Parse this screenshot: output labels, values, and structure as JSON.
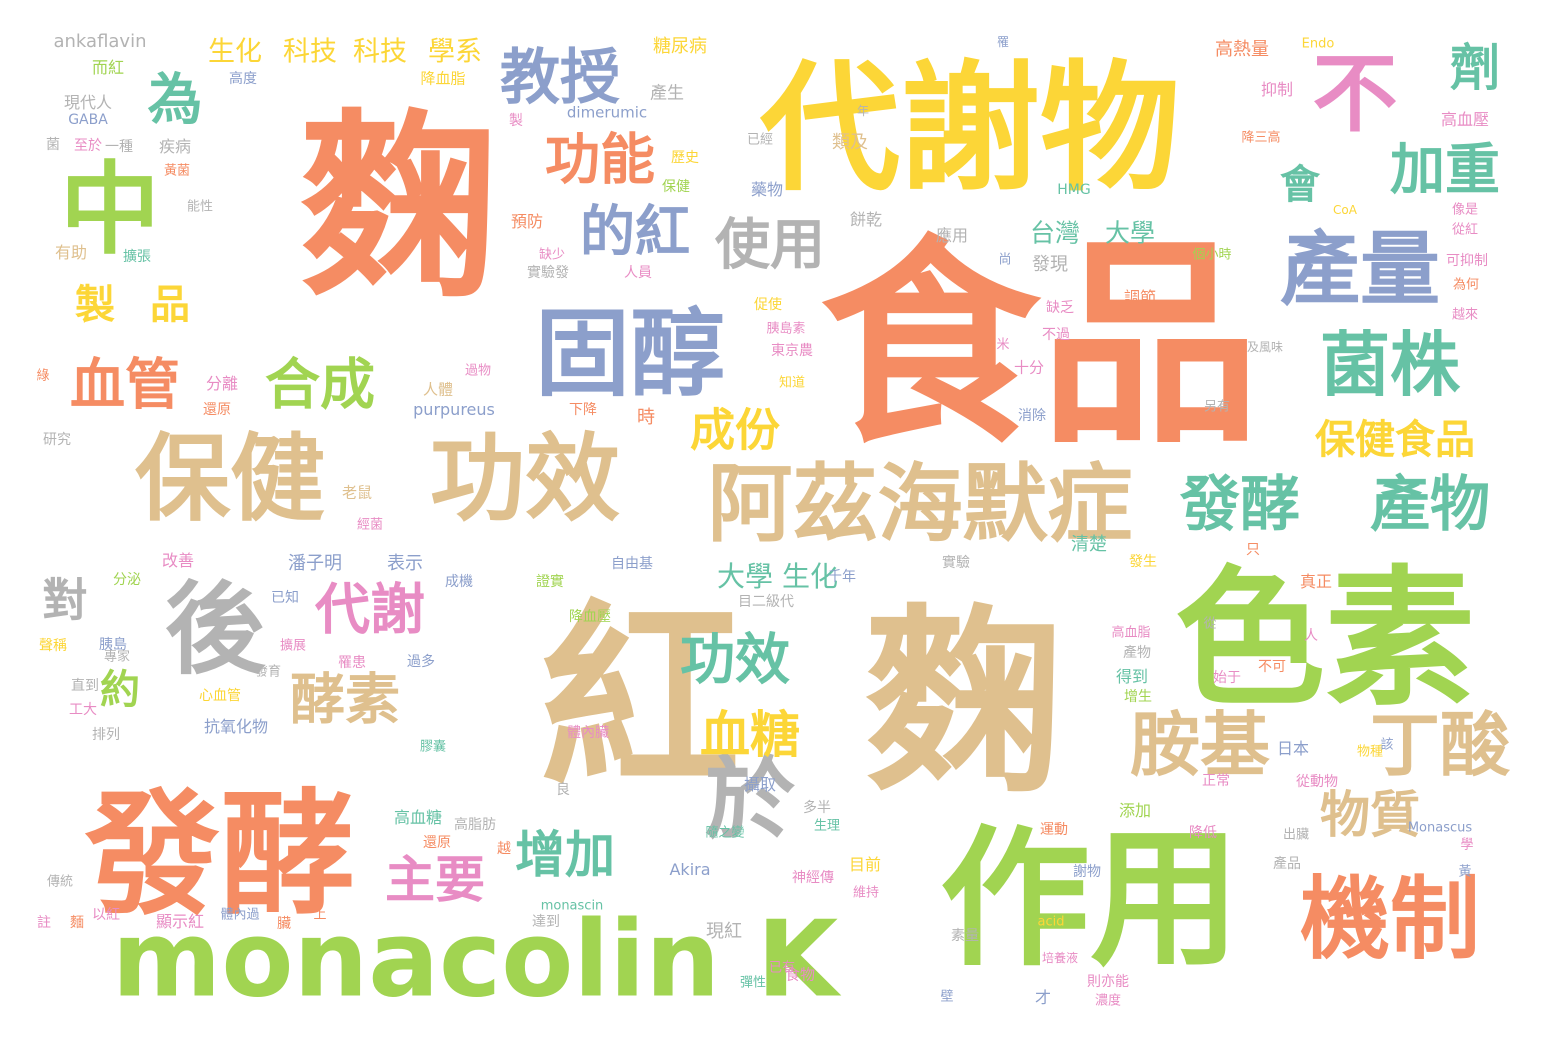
{
  "palette": {
    "orange": "#f58c63",
    "tan": "#dfc08e",
    "green": "#a1d451",
    "yellow": "#fcd637",
    "blue": "#8c9fcb",
    "gray": "#b3b3b3",
    "teal": "#66c2a5",
    "pink": "#e88cc4"
  },
  "words": [
    {
      "text": "麴",
      "color": "orange",
      "vertical": false
    },
    {
      "text": "食品",
      "color": "orange",
      "vertical": false
    },
    {
      "text": "紅",
      "color": "tan",
      "vertical": false
    },
    {
      "text": "麴",
      "color": "tan",
      "vertical": false
    },
    {
      "text": "代謝物",
      "color": "yellow",
      "vertical": false
    },
    {
      "text": "色素",
      "color": "green",
      "vertical": false
    },
    {
      "text": "作用",
      "color": "green",
      "vertical": false
    },
    {
      "text": "發酵",
      "color": "orange",
      "vertical": false
    },
    {
      "text": "monacolin K",
      "color": "green",
      "vertical": false
    },
    {
      "text": "固醇",
      "color": "blue",
      "vertical": false
    },
    {
      "text": "保健",
      "color": "tan",
      "vertical": false
    },
    {
      "text": "功效",
      "color": "tan",
      "vertical": false
    },
    {
      "text": "阿茲海默症",
      "color": "tan",
      "vertical": false
    },
    {
      "text": "中",
      "color": "green",
      "vertical": false
    },
    {
      "text": "後",
      "color": "gray",
      "vertical": false
    },
    {
      "text": "不",
      "color": "pink",
      "vertical": false
    },
    {
      "text": "產量",
      "color": "blue",
      "vertical": false
    },
    {
      "text": "菌株",
      "color": "teal",
      "vertical": false
    },
    {
      "text": "機制",
      "color": "orange",
      "vertical": false
    },
    {
      "text": "胺基",
      "color": "tan",
      "vertical": false
    },
    {
      "text": "丁酸",
      "color": "tan",
      "vertical": false
    },
    {
      "text": "於",
      "color": "gray",
      "vertical": false
    },
    {
      "text": "發酵",
      "color": "teal",
      "vertical": false
    },
    {
      "text": "產物",
      "color": "teal",
      "vertical": false
    },
    {
      "text": "教授",
      "color": "blue",
      "vertical": false
    },
    {
      "text": "功能",
      "color": "orange",
      "vertical": false
    },
    {
      "text": "的紅",
      "color": "blue",
      "vertical": false
    },
    {
      "text": "使用",
      "color": "gray",
      "vertical": false
    },
    {
      "text": "合成",
      "color": "green",
      "vertical": false
    },
    {
      "text": "血管",
      "color": "orange",
      "vertical": false
    },
    {
      "text": "為",
      "color": "teal",
      "vertical": false
    },
    {
      "text": "製",
      "color": "yellow",
      "vertical": false
    },
    {
      "text": "品",
      "color": "yellow",
      "vertical": false
    },
    {
      "text": "加重",
      "color": "teal",
      "vertical": false
    },
    {
      "text": "劑",
      "color": "teal",
      "vertical": false
    },
    {
      "text": "會",
      "color": "teal",
      "vertical": false
    },
    {
      "text": "代謝",
      "color": "pink",
      "vertical": false
    },
    {
      "text": "酵素",
      "color": "tan",
      "vertical": false
    },
    {
      "text": "對",
      "color": "gray",
      "vertical": false
    },
    {
      "text": "約",
      "color": "green",
      "vertical": false
    },
    {
      "text": "功效",
      "color": "teal",
      "vertical": false
    },
    {
      "text": "血糖",
      "color": "yellow",
      "vertical": false
    },
    {
      "text": "增加",
      "color": "teal",
      "vertical": false
    },
    {
      "text": "主要",
      "color": "pink",
      "vertical": false
    },
    {
      "text": "物質",
      "color": "tan",
      "vertical": false
    },
    {
      "text": "成份",
      "color": "yellow",
      "vertical": false
    },
    {
      "text": "保健食品",
      "color": "yellow",
      "vertical": false
    },
    {
      "text": "台灣",
      "color": "teal",
      "vertical": false
    },
    {
      "text": "大學",
      "color": "teal",
      "vertical": false
    },
    {
      "text": "大學",
      "color": "teal",
      "vertical": false
    },
    {
      "text": "生化",
      "color": "teal",
      "vertical": false
    },
    {
      "text": "生化",
      "color": "yellow",
      "vertical": false
    },
    {
      "text": "科技",
      "color": "yellow",
      "vertical": false
    },
    {
      "text": "科技",
      "color": "yellow",
      "vertical": false
    },
    {
      "text": "學系",
      "color": "yellow",
      "vertical": false
    },
    {
      "text": "ankaflavin",
      "color": "gray",
      "vertical": false
    },
    {
      "text": "糖尿病",
      "color": "yellow",
      "vertical": false
    },
    {
      "text": "Endo",
      "color": "yellow",
      "vertical": false
    },
    {
      "text": "高熱量",
      "color": "orange",
      "vertical": false
    },
    {
      "text": "抑制",
      "color": "pink",
      "vertical": false
    },
    {
      "text": "高血壓",
      "color": "pink",
      "vertical": false
    },
    {
      "text": "而紅",
      "color": "green",
      "vertical": false
    },
    {
      "text": "高度",
      "color": "blue",
      "vertical": false
    },
    {
      "text": "降血脂",
      "color": "yellow",
      "vertical": false
    },
    {
      "text": "產生",
      "color": "gray",
      "vertical": false
    },
    {
      "text": "現代人",
      "color": "gray",
      "vertical": false
    },
    {
      "text": "GABA",
      "color": "blue",
      "vertical": false
    },
    {
      "text": "dimerumic",
      "color": "blue",
      "vertical": false
    },
    {
      "text": "疾病",
      "color": "gray",
      "vertical": false
    },
    {
      "text": "一種",
      "color": "gray",
      "vertical": false
    },
    {
      "text": "類及",
      "color": "tan",
      "vertical": false
    },
    {
      "text": "歷史",
      "color": "yellow",
      "vertical": false
    },
    {
      "text": "保健",
      "color": "green",
      "vertical": false
    },
    {
      "text": "預防",
      "color": "orange",
      "vertical": false
    },
    {
      "text": "藥物",
      "color": "blue",
      "vertical": false
    },
    {
      "text": "餅乾",
      "color": "gray",
      "vertical": false
    },
    {
      "text": "應用",
      "color": "gray",
      "vertical": false
    },
    {
      "text": "HMG",
      "color": "teal",
      "vertical": false
    },
    {
      "text": "CoA",
      "color": "yellow",
      "vertical": false
    },
    {
      "text": "發現",
      "color": "gray",
      "vertical": false
    },
    {
      "text": "調節",
      "color": "orange",
      "vertical": false
    },
    {
      "text": "有助",
      "color": "tan",
      "vertical": false
    },
    {
      "text": "擴張",
      "color": "teal",
      "vertical": false
    },
    {
      "text": "實驗發",
      "color": "gray",
      "vertical": false
    },
    {
      "text": "人員",
      "color": "pink",
      "vertical": false
    },
    {
      "text": "促使",
      "color": "yellow",
      "vertical": false
    },
    {
      "text": "胰島素",
      "color": "pink",
      "vertical": false
    },
    {
      "text": "東京農",
      "color": "pink",
      "vertical": false
    },
    {
      "text": "知道",
      "color": "yellow",
      "vertical": false
    },
    {
      "text": "缺乏",
      "color": "pink",
      "vertical": false
    },
    {
      "text": "不過",
      "color": "pink",
      "vertical": false
    },
    {
      "text": "十分",
      "color": "pink",
      "vertical": false
    },
    {
      "text": "分離",
      "color": "pink",
      "vertical": false
    },
    {
      "text": "還原",
      "color": "orange",
      "vertical": false
    },
    {
      "text": "人體",
      "color": "tan",
      "vertical": false
    },
    {
      "text": "purpureus",
      "color": "blue",
      "vertical": false
    },
    {
      "text": "下降",
      "color": "orange",
      "vertical": false
    },
    {
      "text": "時",
      "color": "orange",
      "vertical": false
    },
    {
      "text": "消除",
      "color": "blue",
      "vertical": false
    },
    {
      "text": "另有",
      "color": "gray",
      "vertical": false
    },
    {
      "text": "研究",
      "color": "gray",
      "vertical": false
    },
    {
      "text": "老鼠",
      "color": "tan",
      "vertical": false
    },
    {
      "text": "改善",
      "color": "pink",
      "vertical": false
    },
    {
      "text": "潘子明",
      "color": "blue",
      "vertical": false
    },
    {
      "text": "表示",
      "color": "blue",
      "vertical": false
    },
    {
      "text": "成機",
      "color": "blue",
      "vertical": false
    },
    {
      "text": "證實",
      "color": "green",
      "vertical": false
    },
    {
      "text": "自由基",
      "color": "blue",
      "vertical": false
    },
    {
      "text": "千年",
      "color": "blue",
      "vertical": false
    },
    {
      "text": "實驗",
      "color": "gray",
      "vertical": false
    },
    {
      "text": "發生",
      "color": "yellow",
      "vertical": false
    },
    {
      "text": "清楚",
      "color": "teal",
      "vertical": false
    },
    {
      "text": "真正",
      "color": "orange",
      "vertical": false
    },
    {
      "text": "分泌",
      "color": "green",
      "vertical": false
    },
    {
      "text": "已知",
      "color": "blue",
      "vertical": false
    },
    {
      "text": "目二級代",
      "color": "gray",
      "vertical": false
    },
    {
      "text": "降血壓",
      "color": "green",
      "vertical": false
    },
    {
      "text": "高血脂",
      "color": "pink",
      "vertical": false
    },
    {
      "text": "產物",
      "color": "gray",
      "vertical": false
    },
    {
      "text": "得到",
      "color": "teal",
      "vertical": false
    },
    {
      "text": "增生",
      "color": "green",
      "vertical": false
    },
    {
      "text": "始于",
      "color": "pink",
      "vertical": false
    },
    {
      "text": "不可",
      "color": "orange",
      "vertical": false
    },
    {
      "text": "聲稱",
      "color": "yellow",
      "vertical": false
    },
    {
      "text": "胰島",
      "color": "blue",
      "vertical": false
    },
    {
      "text": "擴展",
      "color": "pink",
      "vertical": false
    },
    {
      "text": "罹患",
      "color": "pink",
      "vertical": false
    },
    {
      "text": "過多",
      "color": "blue",
      "vertical": false
    },
    {
      "text": "直到",
      "color": "gray",
      "vertical": false
    },
    {
      "text": "工大",
      "color": "pink",
      "vertical": false
    },
    {
      "text": "心血管",
      "color": "yellow",
      "vertical": false
    },
    {
      "text": "抗氧化物",
      "color": "blue",
      "vertical": false
    },
    {
      "text": "排列",
      "color": "gray",
      "vertical": false
    },
    {
      "text": "體內臟",
      "color": "pink",
      "vertical": false
    },
    {
      "text": "膠囊",
      "color": "teal",
      "vertical": false
    },
    {
      "text": "日本",
      "color": "blue",
      "vertical": false
    },
    {
      "text": "從動物",
      "color": "pink",
      "vertical": false
    },
    {
      "text": "正常",
      "color": "pink",
      "vertical": false
    },
    {
      "text": "物種",
      "color": "yellow",
      "vertical": false
    },
    {
      "text": "攝取",
      "color": "blue",
      "vertical": false
    },
    {
      "text": "多半",
      "color": "gray",
      "vertical": false
    },
    {
      "text": "生理",
      "color": "teal",
      "vertical": false
    },
    {
      "text": "添加",
      "color": "green",
      "vertical": false
    },
    {
      "text": "高血糖",
      "color": "teal",
      "vertical": false
    },
    {
      "text": "高脂肪",
      "color": "gray",
      "vertical": false
    },
    {
      "text": "運動",
      "color": "orange",
      "vertical": false
    },
    {
      "text": "出臟",
      "color": "gray",
      "vertical": false
    },
    {
      "text": "Monascus",
      "color": "blue",
      "vertical": false
    },
    {
      "text": "還原",
      "color": "orange",
      "vertical": false
    },
    {
      "text": "隨之變",
      "color": "teal",
      "vertical": false
    },
    {
      "text": "降低",
      "color": "pink",
      "vertical": false
    },
    {
      "text": "目前",
      "color": "yellow",
      "vertical": false
    },
    {
      "text": "產品",
      "color": "gray",
      "vertical": false
    },
    {
      "text": "Akira",
      "color": "blue",
      "vertical": false
    },
    {
      "text": "神經傳",
      "color": "pink",
      "vertical": false
    },
    {
      "text": "維持",
      "color": "pink",
      "vertical": false
    },
    {
      "text": "謝物",
      "color": "blue",
      "vertical": false
    },
    {
      "text": "傳統",
      "color": "gray",
      "vertical": false
    },
    {
      "text": "以紅",
      "color": "pink",
      "vertical": false
    },
    {
      "text": "顯示紅",
      "color": "pink",
      "vertical": false
    },
    {
      "text": "體內過",
      "color": "blue",
      "vertical": false
    },
    {
      "text": "上",
      "color": "orange",
      "vertical": false
    },
    {
      "text": "達到",
      "color": "gray",
      "vertical": false
    },
    {
      "text": "monascin",
      "color": "teal",
      "vertical": false
    },
    {
      "text": "現紅",
      "color": "gray",
      "vertical": false
    },
    {
      "text": "素量",
      "color": "gray",
      "vertical": false
    },
    {
      "text": "acid",
      "color": "yellow",
      "vertical": false
    },
    {
      "text": "培養液",
      "color": "pink",
      "vertical": false
    },
    {
      "text": "食物",
      "color": "pink",
      "vertical": false
    },
    {
      "text": "已有",
      "color": "pink",
      "vertical": false
    },
    {
      "text": "彈性",
      "color": "teal",
      "vertical": false
    },
    {
      "text": "則亦能",
      "color": "pink",
      "vertical": false
    },
    {
      "text": "濃度",
      "color": "pink",
      "vertical": false
    },
    {
      "text": "才",
      "color": "blue",
      "vertical": false
    },
    {
      "text": "壁",
      "color": "blue",
      "vertical": false
    },
    {
      "text": "註",
      "color": "pink",
      "vertical": false
    },
    {
      "text": "麵",
      "color": "orange",
      "vertical": false
    },
    {
      "text": "臟",
      "color": "orange",
      "vertical": false
    },
    {
      "text": "罹",
      "color": "blue",
      "vertical": false
    },
    {
      "text": "菌",
      "color": "gray",
      "vertical": false
    },
    {
      "text": "至於",
      "color": "pink",
      "vertical": false
    },
    {
      "text": "黃菌",
      "color": "orange",
      "vertical": false
    },
    {
      "text": "能性",
      "color": "gray",
      "vertical": false
    },
    {
      "text": "製",
      "color": "pink",
      "vertical": false
    },
    {
      "text": "已經",
      "color": "gray",
      "vertical": false
    },
    {
      "text": "年",
      "color": "gray",
      "vertical": false
    },
    {
      "text": "缺少",
      "color": "pink",
      "vertical": false
    },
    {
      "text": "尚",
      "color": "blue",
      "vertical": false
    },
    {
      "text": "米",
      "color": "pink",
      "vertical": false
    },
    {
      "text": "過物",
      "color": "pink",
      "vertical": false
    },
    {
      "text": "降三高",
      "color": "orange",
      "vertical": false
    },
    {
      "text": "像是",
      "color": "pink",
      "vertical": false
    },
    {
      "text": "從紅",
      "color": "pink",
      "vertical": false
    },
    {
      "text": "可抑制",
      "color": "pink",
      "vertical": false
    },
    {
      "text": "為何",
      "color": "orange",
      "vertical": false
    },
    {
      "text": "越來",
      "color": "pink",
      "vertical": false
    },
    {
      "text": "及風味",
      "color": "gray",
      "vertical": false
    },
    {
      "text": "個小時",
      "color": "green",
      "vertical": false
    },
    {
      "text": "只",
      "color": "orange",
      "vertical": false
    },
    {
      "text": "從",
      "color": "gray",
      "vertical": false
    },
    {
      "text": "人",
      "color": "pink",
      "vertical": false
    },
    {
      "text": "該",
      "color": "blue",
      "vertical": false
    },
    {
      "text": "學",
      "color": "pink",
      "vertical": false
    },
    {
      "text": "黃",
      "color": "blue",
      "vertical": false
    },
    {
      "text": "綠",
      "color": "orange",
      "vertical": false
    },
    {
      "text": "經菌",
      "color": "pink",
      "vertical": false
    },
    {
      "text": "發育",
      "color": "gray",
      "vertical": false
    },
    {
      "text": "專家",
      "color": "gray",
      "vertical": false
    },
    {
      "text": "良",
      "color": "gray",
      "vertical": false
    },
    {
      "text": "越",
      "color": "orange",
      "vertical": false
    }
  ]
}
